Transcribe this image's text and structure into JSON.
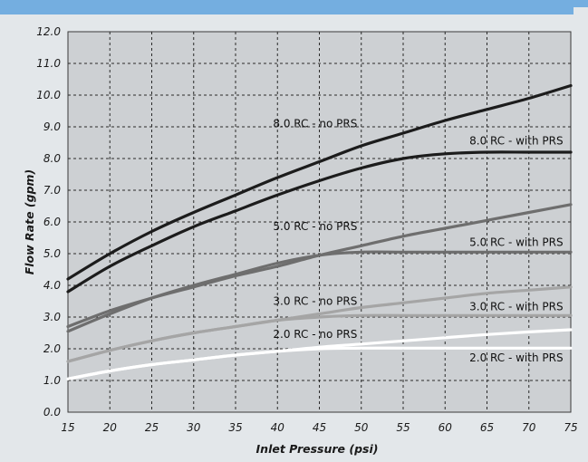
{
  "chart_data": {
    "type": "line",
    "xlabel": "Inlet Pressure (psi)",
    "ylabel": "Flow Rate (gpm)",
    "xlim": [
      15,
      75
    ],
    "ylim": [
      0,
      12
    ],
    "x_ticks": [
      "15",
      "20",
      "25",
      "30",
      "35",
      "40",
      "45",
      "50",
      "55",
      "60",
      "65",
      "70",
      "75"
    ],
    "y_ticks": [
      "0.0",
      "1.0",
      "2.0",
      "3.0",
      "4.0",
      "5.0",
      "6.0",
      "7.0",
      "8.0",
      "9.0",
      "10.0",
      "11.0",
      "12.0"
    ],
    "grid": true,
    "x": [
      15,
      20,
      25,
      30,
      35,
      40,
      45,
      50,
      55,
      60,
      65,
      70,
      75
    ],
    "series": [
      {
        "name": "8.0 RC - no PRS",
        "color": "#1c1c1c",
        "values": [
          4.2,
          5.0,
          5.7,
          6.3,
          6.85,
          7.4,
          7.9,
          8.4,
          8.8,
          9.2,
          9.55,
          9.9,
          10.3
        ]
      },
      {
        "name": "8.0 RC - with PRS",
        "color": "#1c1c1c",
        "values": [
          3.8,
          4.6,
          5.25,
          5.85,
          6.35,
          6.85,
          7.3,
          7.7,
          8.0,
          8.15,
          8.2,
          8.2,
          8.2
        ]
      },
      {
        "name": "5.0 RC - no PRS",
        "color": "#6e6e6e",
        "values": [
          2.7,
          3.2,
          3.6,
          3.95,
          4.3,
          4.6,
          4.95,
          5.25,
          5.55,
          5.8,
          6.05,
          6.3,
          6.55
        ]
      },
      {
        "name": "5.0 RC - with PRS",
        "color": "#6e6e6e",
        "values": [
          2.55,
          3.1,
          3.6,
          4.0,
          4.35,
          4.7,
          4.95,
          5.05,
          5.05,
          5.05,
          5.05,
          5.05,
          5.05
        ]
      },
      {
        "name": "3.0 RC - no PRS",
        "color": "#a5a5a5",
        "values": [
          1.6,
          1.95,
          2.25,
          2.5,
          2.7,
          2.9,
          3.1,
          3.3,
          3.45,
          3.6,
          3.75,
          3.85,
          3.95
        ]
      },
      {
        "name": "3.0 RC - with PRS",
        "color": "#a5a5a5",
        "values": [
          1.6,
          1.95,
          2.25,
          2.5,
          2.7,
          2.9,
          3.0,
          3.05,
          3.05,
          3.05,
          3.05,
          3.05,
          3.05
        ]
      },
      {
        "name": "2.0 RC - no PRS",
        "color": "#ffffff",
        "values": [
          1.05,
          1.3,
          1.5,
          1.65,
          1.8,
          1.92,
          2.05,
          2.15,
          2.25,
          2.35,
          2.45,
          2.53,
          2.6
        ]
      },
      {
        "name": "2.0 RC - with PRS",
        "color": "#ffffff",
        "values": [
          1.05,
          1.3,
          1.5,
          1.65,
          1.8,
          1.92,
          2.0,
          2.02,
          2.02,
          2.02,
          2.02,
          2.02,
          2.02
        ]
      }
    ],
    "labels": [
      {
        "text": "8.0 RC - no PRS",
        "x": 44.5,
        "y": 8.98
      },
      {
        "text": "8.0 RC - with PRS",
        "x": 68.5,
        "y": 8.45
      },
      {
        "text": "5.0 RC - no PRS",
        "x": 44.5,
        "y": 5.75
      },
      {
        "text": "5.0 RC - with PRS",
        "x": 68.5,
        "y": 5.25
      },
      {
        "text": "3.0 RC - no PRS",
        "x": 44.5,
        "y": 3.38
      },
      {
        "text": "3.0 RC - with PRS",
        "x": 68.5,
        "y": 3.22
      },
      {
        "text": "2.0 RC - no PRS",
        "x": 44.5,
        "y": 2.35
      },
      {
        "text": "2.0 RC - with PRS",
        "x": 68.5,
        "y": 1.6
      }
    ]
  },
  "colors": {
    "header_bar": "#74aee0",
    "background": "#e3e7ea",
    "plot_area": "#cdd0d3"
  }
}
